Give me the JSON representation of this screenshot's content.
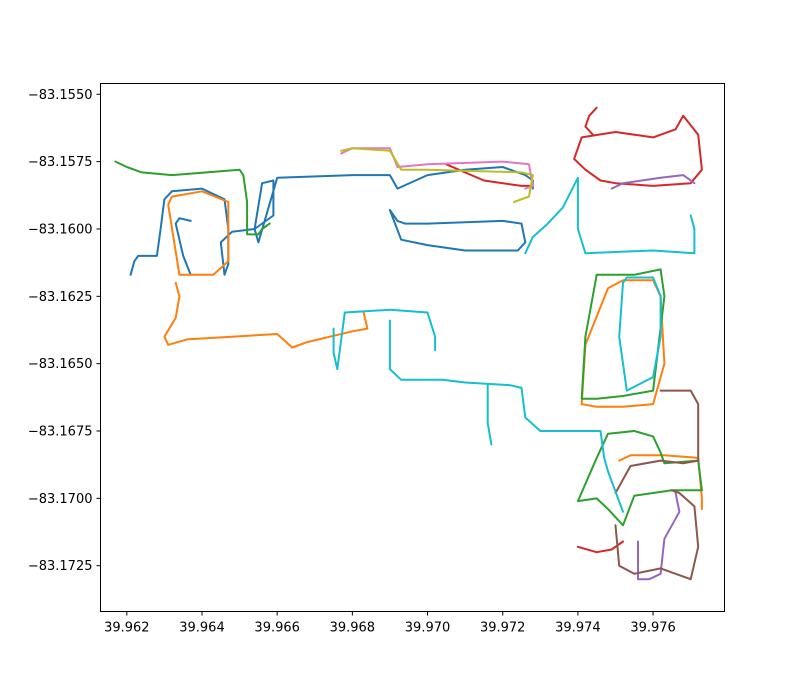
{
  "chart_data": {
    "type": "line",
    "title": "",
    "xlabel": "",
    "ylabel": "",
    "xlim": [
      39.9613,
      39.9779
    ],
    "ylim": [
      -83.1742,
      -83.1546
    ],
    "grid": false,
    "legend": "none",
    "x_ticks": [
      {
        "value": 39.962,
        "label": "39.962"
      },
      {
        "value": 39.964,
        "label": "39.964"
      },
      {
        "value": 39.966,
        "label": "39.966"
      },
      {
        "value": 39.968,
        "label": "39.968"
      },
      {
        "value": 39.97,
        "label": "39.970"
      },
      {
        "value": 39.972,
        "label": "39.972"
      },
      {
        "value": 39.974,
        "label": "39.974"
      },
      {
        "value": 39.976,
        "label": "39.976"
      }
    ],
    "y_ticks": [
      {
        "value": -83.155,
        "label": "−83.1550"
      },
      {
        "value": -83.1575,
        "label": "−83.1575"
      },
      {
        "value": -83.16,
        "label": "−83.1600"
      },
      {
        "value": -83.1625,
        "label": "−83.1625"
      },
      {
        "value": -83.165,
        "label": "−83.1650"
      },
      {
        "value": -83.1675,
        "label": "−83.1675"
      },
      {
        "value": -83.17,
        "label": "−83.1700"
      },
      {
        "value": -83.1725,
        "label": "−83.1725"
      }
    ],
    "series": [
      {
        "color": "#1f77b4",
        "x": [
          39.9621,
          39.9622,
          39.9623,
          39.9628,
          39.9629,
          39.963,
          39.9632,
          39.964,
          39.9646,
          39.9647,
          39.9647,
          39.9646,
          39.9645,
          39.9648,
          39.9654,
          39.9656,
          39.9659,
          39.9659,
          39.9654,
          39.9655,
          39.966,
          39.968,
          39.969,
          39.9692,
          39.97,
          39.971,
          39.972,
          39.9726,
          39.9728,
          39.9728
        ],
        "y": [
          -83.1617,
          -83.1612,
          -83.161,
          -83.161,
          -83.16,
          -83.1589,
          -83.1586,
          -83.1585,
          -83.1589,
          -83.16,
          -83.1613,
          -83.1617,
          -83.1605,
          -83.1601,
          -83.16,
          -83.1583,
          -83.1582,
          -83.1595,
          -83.16,
          -83.1605,
          -83.1581,
          -83.158,
          -83.158,
          -83.1585,
          -83.158,
          -83.1578,
          -83.1577,
          -83.158,
          -83.1582,
          -83.1585
        ]
      },
      {
        "color": "#1f77b4",
        "x": [
          39.9637,
          39.9634,
          39.9633,
          39.9635,
          39.9637
        ],
        "y": [
          -83.1597,
          -83.1596,
          -83.1598,
          -83.161,
          -83.1617
        ]
      },
      {
        "color": "#1f77b4",
        "x": [
          39.969,
          39.9692,
          39.9694,
          39.97,
          39.972,
          39.9725,
          39.9726,
          39.9724,
          39.971,
          39.97,
          39.9693,
          39.969
        ],
        "y": [
          -83.1593,
          -83.1597,
          -83.1598,
          -83.1598,
          -83.1597,
          -83.1598,
          -83.1605,
          -83.1608,
          -83.1608,
          -83.1606,
          -83.1604,
          -83.1593
        ]
      },
      {
        "color": "#ff7f0e",
        "x": [
          39.9633,
          39.9634,
          39.9633,
          39.963,
          39.9631,
          39.9636,
          39.966,
          39.9664,
          39.9668,
          39.968,
          39.9684,
          39.9683
        ],
        "y": [
          -83.162,
          -83.1625,
          -83.1633,
          -83.164,
          -83.1643,
          -83.1641,
          -83.1639,
          -83.1644,
          -83.1642,
          -83.1638,
          -83.1637,
          -83.1631
        ]
      },
      {
        "color": "#ff7f0e",
        "x": [
          39.9631,
          39.9632,
          39.964,
          39.9647,
          39.9647,
          39.9643,
          39.9634,
          39.9631
        ],
        "y": [
          -83.1591,
          -83.1588,
          -83.1586,
          -83.159,
          -83.1612,
          -83.1617,
          -83.1617,
          -83.1591
        ]
      },
      {
        "color": "#ff7f0e",
        "x": [
          39.9751,
          39.9754,
          39.9763,
          39.9772,
          39.9773,
          39.9773
        ],
        "y": [
          -83.1686,
          -83.1684,
          -83.1684,
          -83.1685,
          -83.17,
          -83.1704
        ]
      },
      {
        "color": "#ff7f0e",
        "x": [
          39.9741,
          39.9742,
          39.9748,
          39.9752,
          39.976,
          39.9762,
          39.9763,
          39.976,
          39.9752,
          39.9745,
          39.9741
        ],
        "y": [
          -83.1665,
          -83.1643,
          -83.1622,
          -83.1619,
          -83.1619,
          -83.1625,
          -83.165,
          -83.1665,
          -83.1666,
          -83.1666,
          -83.1665
        ]
      },
      {
        "color": "#2ca02c",
        "x": [
          39.9617,
          39.962,
          39.9624,
          39.9632,
          39.965,
          39.9651,
          39.9652,
          39.9652,
          39.9655,
          39.9656,
          39.9658
        ],
        "y": [
          -83.1575,
          -83.1577,
          -83.1579,
          -83.158,
          -83.1578,
          -83.158,
          -83.159,
          -83.1602,
          -83.1602,
          -83.16,
          -83.1598
        ]
      },
      {
        "color": "#2ca02c",
        "x": [
          39.9745,
          39.9755,
          39.9762,
          39.9763,
          39.976,
          39.9752,
          39.9745,
          39.9741,
          39.9742,
          39.9745
        ],
        "y": [
          -83.1617,
          -83.1617,
          -83.1615,
          -83.1625,
          -83.166,
          -83.1662,
          -83.1663,
          -83.1663,
          -83.164,
          -83.1617
        ]
      },
      {
        "color": "#2ca02c",
        "x": [
          39.974,
          39.9745,
          39.9748,
          39.9755,
          39.976,
          39.9762,
          39.9763,
          39.9772,
          39.9773,
          39.9765,
          39.9755,
          39.9752,
          39.9748,
          39.9745,
          39.974
        ],
        "y": [
          -83.1701,
          -83.1685,
          -83.1676,
          -83.1675,
          -83.1677,
          -83.1683,
          -83.1687,
          -83.1686,
          -83.1697,
          -83.1697,
          -83.1699,
          -83.171,
          -83.1704,
          -83.17,
          -83.1701
        ]
      },
      {
        "color": "#d62728",
        "x": [
          39.974,
          39.9745,
          39.9749,
          39.9752
        ],
        "y": [
          -83.1718,
          -83.172,
          -83.1719,
          -83.1716
        ]
      },
      {
        "color": "#d62728",
        "x": [
          39.9739,
          39.9741,
          39.975,
          39.976,
          39.9766,
          39.9768,
          39.9772,
          39.9773,
          39.977,
          39.976,
          39.975,
          39.9746,
          39.9742,
          39.9739
        ],
        "y": [
          -83.1574,
          -83.1566,
          -83.1564,
          -83.1566,
          -83.1563,
          -83.1558,
          -83.1565,
          -83.1578,
          -83.1583,
          -83.1584,
          -83.1583,
          -83.1582,
          -83.1578,
          -83.1574
        ]
      },
      {
        "color": "#d62728",
        "x": [
          39.9745,
          39.9743,
          39.9742,
          39.9744
        ],
        "y": [
          -83.1555,
          -83.1558,
          -83.1562,
          -83.1565
        ]
      },
      {
        "color": "#d62728",
        "x": [
          39.9705,
          39.9715,
          39.9725,
          39.9728
        ],
        "y": [
          -83.1576,
          -83.1582,
          -83.1584,
          -83.1584
        ]
      },
      {
        "color": "#9467bd",
        "x": [
          39.9749,
          39.9752,
          39.9762,
          39.9768,
          39.9771
        ],
        "y": [
          -83.1585,
          -83.1583,
          -83.1581,
          -83.158,
          -83.1583
        ]
      },
      {
        "color": "#9467bd",
        "x": [
          39.9756,
          39.9756,
          39.9759,
          39.9762,
          39.9763,
          39.9767,
          39.9766
        ],
        "y": [
          -83.1716,
          -83.173,
          -83.173,
          -83.1728,
          -83.1715,
          -83.1705,
          -83.1698
        ]
      },
      {
        "color": "#8c564b",
        "x": [
          39.975,
          39.9751,
          39.9755,
          39.9762,
          39.977,
          39.9772,
          39.9771,
          39.9767,
          39.9765
        ],
        "y": [
          -83.171,
          -83.1725,
          -83.1728,
          -83.1726,
          -83.173,
          -83.1718,
          -83.1703,
          -83.1698,
          -83.1697
        ]
      },
      {
        "color": "#8c564b",
        "x": [
          39.9762,
          39.977,
          39.9772,
          39.9772,
          39.9768,
          39.9762,
          39.9754,
          39.975
        ],
        "y": [
          -83.166,
          -83.166,
          -83.1665,
          -83.1686,
          -83.1687,
          -83.1686,
          -83.1688,
          -83.1698
        ]
      },
      {
        "color": "#e377c2",
        "x": [
          39.9677,
          39.968,
          39.969,
          39.9692,
          39.97,
          39.972,
          39.9727,
          39.9728,
          39.9726
        ],
        "y": [
          -83.1572,
          -83.157,
          -83.157,
          -83.1577,
          -83.1576,
          -83.1575,
          -83.1576,
          -83.1584,
          -83.1585
        ]
      },
      {
        "color": "#bcbd22",
        "x": [
          39.9677,
          39.968,
          39.969,
          39.9693,
          39.97,
          39.9725,
          39.9728,
          39.9727,
          39.9723
        ],
        "y": [
          -83.1571,
          -83.157,
          -83.1571,
          -83.1578,
          -83.1578,
          -83.1579,
          -83.158,
          -83.1588,
          -83.159
        ]
      },
      {
        "color": "#17becf",
        "x": [
          39.9675,
          39.9675,
          39.9676,
          39.9678,
          39.969,
          39.97,
          39.9702,
          39.9702
        ],
        "y": [
          -83.1637,
          -83.1646,
          -83.1652,
          -83.1631,
          -83.163,
          -83.1631,
          -83.164,
          -83.1645
        ]
      },
      {
        "color": "#17becf",
        "x": [
          39.969,
          39.969,
          39.9693,
          39.9704,
          39.971,
          39.9722,
          39.9725,
          39.9726,
          39.973,
          39.974,
          39.9746,
          39.9747,
          39.9748,
          39.9752
        ],
        "y": [
          -83.1634,
          -83.1652,
          -83.1656,
          -83.1656,
          -83.1657,
          -83.1658,
          -83.1659,
          -83.167,
          -83.1675,
          -83.1675,
          -83.1675,
          -83.1685,
          -83.169,
          -83.1705
        ]
      },
      {
        "color": "#17becf",
        "x": [
          39.9716,
          39.9716,
          39.9717
        ],
        "y": [
          -83.1658,
          -83.1672,
          -83.168
        ]
      },
      {
        "color": "#17becf",
        "x": [
          39.9752,
          39.9751,
          39.9753,
          39.976,
          39.9762,
          39.9762,
          39.976,
          39.9753,
          39.9752
        ],
        "y": [
          -83.162,
          -83.164,
          -83.166,
          -83.1655,
          -83.164,
          -83.1625,
          -83.1618,
          -83.1618,
          -83.162
        ]
      },
      {
        "color": "#17becf",
        "x": [
          39.9726,
          39.9728,
          39.9732,
          39.9736,
          39.974,
          39.974,
          39.9742,
          39.976,
          39.9771,
          39.9771,
          39.977
        ],
        "y": [
          -83.1609,
          -83.1603,
          -83.1598,
          -83.1592,
          -83.1581,
          -83.16,
          -83.1609,
          -83.1608,
          -83.1609,
          -83.16,
          -83.1595
        ]
      }
    ]
  }
}
